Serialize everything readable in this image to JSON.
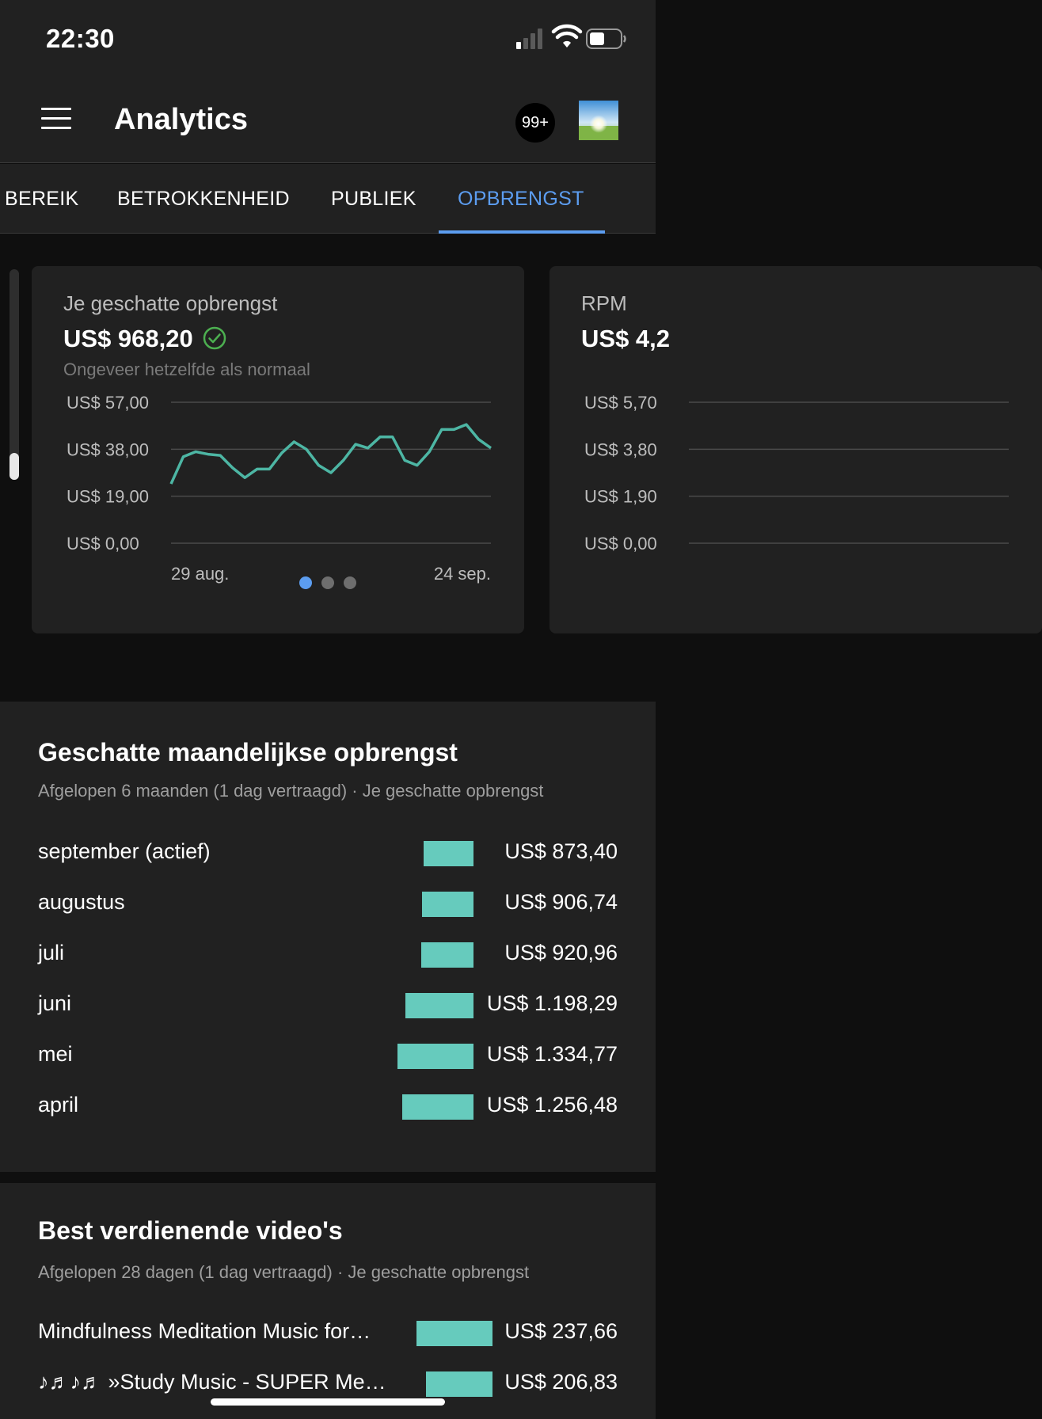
{
  "status_bar": {
    "time": "22:30"
  },
  "header": {
    "title": "Analytics",
    "notifications_badge": "99+"
  },
  "tabs": [
    {
      "label": "BEREIK",
      "active": false
    },
    {
      "label": "BETROKKENHEID",
      "active": false
    },
    {
      "label": "PUBLIEK",
      "active": false
    },
    {
      "label": "OPBRENGST",
      "active": true
    }
  ],
  "cards": [
    {
      "label": "Je geschatte opbrengst",
      "value": "US$ 968,20",
      "subtitle": "Ongeveer hetzelfde als normaal",
      "y_ticks": [
        "US$ 57,00",
        "US$ 38,00",
        "US$ 19,00",
        "US$ 0,00"
      ],
      "x_start": "29 aug.",
      "x_end": "24 sep."
    },
    {
      "label": "RPM",
      "value": "US$ 4,2",
      "y_ticks": [
        "US$ 5,70",
        "US$ 3,80",
        "US$ 1,90",
        "US$ 0,00"
      ]
    }
  ],
  "chart_data": {
    "type": "line",
    "title": "Je geschatte opbrengst",
    "x_start": "29 aug.",
    "x_end": "24 sep.",
    "ylim": [
      0,
      57
    ],
    "yticks": [
      0,
      19,
      38,
      57
    ],
    "grid": true,
    "series": [
      {
        "color": "#4db6a4",
        "values": [
          24,
          35,
          37,
          36,
          35.5,
          30.5,
          26.5,
          30,
          30,
          36.5,
          41,
          38,
          31.5,
          28.5,
          33.5,
          40,
          38.5,
          43,
          43,
          33.5,
          31.5,
          37,
          46,
          46,
          48,
          42,
          38.5
        ]
      }
    ]
  },
  "pagination": {
    "count": 3,
    "active": 0
  },
  "monthly": {
    "title": "Geschatte maandelijkse opbrengst",
    "subtitle": "Afgelopen 6 maanden (1 dag vertraagd) · Je geschatte opbrengst",
    "bar_color": "#66cbbd",
    "rows": [
      {
        "label": "september (actief)",
        "value": "US$ 873,40",
        "amount": 873.4
      },
      {
        "label": "augustus",
        "value": "US$ 906,74",
        "amount": 906.74
      },
      {
        "label": "juli",
        "value": "US$ 920,96",
        "amount": 920.96
      },
      {
        "label": "juni",
        "value": "US$ 1.198,29",
        "amount": 1198.29
      },
      {
        "label": "mei",
        "value": "US$ 1.334,77",
        "amount": 1334.77
      },
      {
        "label": "april",
        "value": "US$ 1.256,48",
        "amount": 1256.48
      }
    ]
  },
  "videos": {
    "title": "Best verdienende video's",
    "subtitle": "Afgelopen 28 dagen (1 dag vertraagd) · Je geschatte opbrengst",
    "rows": [
      {
        "label": "Mindfulness Meditation Music for…",
        "value": "US$ 237,66",
        "amount": 237.66
      },
      {
        "label": "♪♬♪♬ »Study Music - SUPER Me…",
        "value": "US$ 206,83",
        "amount": 206.83
      }
    ]
  }
}
